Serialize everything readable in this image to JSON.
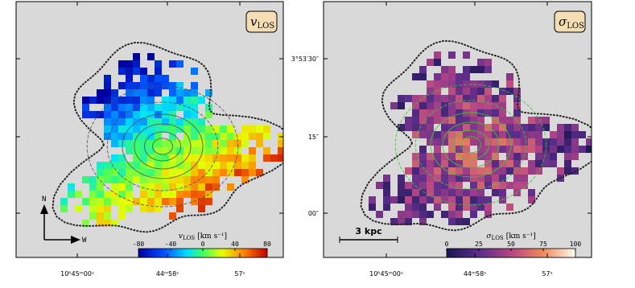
{
  "left_panel": {
    "badge": {
      "symbol": "v",
      "sub": "LOS"
    },
    "colorbar": {
      "symbol": "v",
      "sub": "LOS",
      "unit": "[km s⁻¹]",
      "ticks": [
        -80,
        -40,
        0,
        40,
        80
      ]
    },
    "compass": {
      "north": "N",
      "west": "W"
    }
  },
  "right_panel": {
    "badge": {
      "symbol": "σ",
      "sub": "LOS"
    },
    "colorbar": {
      "symbol": "σ",
      "sub": "LOS",
      "unit": "[km s⁻¹]",
      "ticks": [
        0,
        25,
        50,
        75,
        100
      ]
    },
    "scale_bar": "3 kpc"
  },
  "x_ticks": [
    "10ʰ45ᵐ00ˢ",
    "44ᵐ58ˢ",
    "57ˢ"
  ],
  "y_ticks": [
    "3°53′30″",
    "15″",
    "00″"
  ]
}
